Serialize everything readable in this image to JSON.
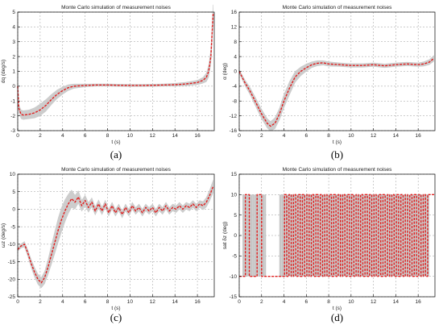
{
  "chart_data": [
    {
      "type": "line",
      "title": "Monte Carlo simulation of measurement noises",
      "xlabel": "t (s)",
      "ylabel": "dq (deg/s)",
      "caption": "(a)",
      "xlim": [
        0,
        17.5
      ],
      "ylim": [
        -3,
        5
      ],
      "xticks": [
        0,
        2,
        4,
        6,
        8,
        10,
        12,
        14,
        16
      ],
      "yticks": [
        -3,
        -2,
        -1,
        0,
        1,
        2,
        3,
        4,
        5
      ],
      "grid": true,
      "line_color": "#e11d1d",
      "band_color": "#c8c8c8",
      "x": [
        0,
        0.1,
        0.3,
        0.5,
        1,
        1.5,
        2,
        2.5,
        3,
        3.5,
        4,
        4.5,
        5,
        6,
        7,
        8,
        9,
        10,
        11,
        12,
        13,
        14,
        15,
        16,
        16.5,
        16.8,
        17,
        17.2,
        17.4
      ],
      "values": [
        0,
        -1.5,
        -1.9,
        -1.95,
        -1.9,
        -1.8,
        -1.6,
        -1.3,
        -0.9,
        -0.55,
        -0.3,
        -0.1,
        0.0,
        0.05,
        0.08,
        0.08,
        0.06,
        0.05,
        0.05,
        0.06,
        0.08,
        0.1,
        0.15,
        0.25,
        0.4,
        0.6,
        1.0,
        2.0,
        4.9
      ],
      "band": [
        0.2,
        0.25,
        0.3,
        0.3,
        0.3,
        0.35,
        0.4,
        0.4,
        0.35,
        0.3,
        0.25,
        0.2,
        0.15,
        0.1,
        0.08,
        0.08,
        0.08,
        0.08,
        0.08,
        0.08,
        0.08,
        0.1,
        0.12,
        0.15,
        0.2,
        0.3,
        0.4,
        0.5,
        0.6
      ]
    },
    {
      "type": "line",
      "title": "Monte Carlo simulation of measurement noises",
      "xlabel": "t (s)",
      "ylabel": "α (deg)",
      "caption": "(b)",
      "xlim": [
        0,
        17.5
      ],
      "ylim": [
        -16,
        16
      ],
      "xticks": [
        0,
        2,
        4,
        6,
        8,
        10,
        12,
        14,
        16
      ],
      "yticks": [
        -16,
        -12,
        -8,
        -4,
        0,
        4,
        8,
        12,
        16
      ],
      "grid": true,
      "line_color": "#e11d1d",
      "band_color": "#c8c8c8",
      "x": [
        0,
        0.5,
        1,
        1.5,
        2,
        2.5,
        2.8,
        3.2,
        3.6,
        4,
        4.5,
        5,
        5.5,
        6,
        6.5,
        7,
        7.5,
        8,
        9,
        10,
        11,
        12,
        13,
        14,
        15,
        16,
        16.5,
        17,
        17.4
      ],
      "values": [
        0,
        -3,
        -5.5,
        -8.5,
        -11.5,
        -14,
        -14.8,
        -14,
        -11.5,
        -8,
        -4.5,
        -1.5,
        0,
        1,
        1.8,
        2.2,
        2.3,
        2.0,
        1.8,
        1.6,
        1.6,
        1.8,
        1.5,
        1.8,
        2.0,
        1.8,
        2.0,
        2.5,
        3.5
      ],
      "band": [
        0.5,
        0.8,
        1.0,
        1.2,
        1.3,
        1.3,
        1.3,
        1.5,
        1.6,
        1.8,
        1.8,
        1.5,
        1.2,
        1.0,
        0.8,
        0.7,
        0.6,
        0.6,
        0.5,
        0.5,
        0.5,
        0.5,
        0.5,
        0.5,
        0.5,
        0.5,
        0.6,
        0.7,
        0.8
      ]
    },
    {
      "type": "line",
      "title": "Monte Carlo simulation of measurement noises",
      "xlabel": "t (s)",
      "ylabel": "ωz (deg/s)",
      "caption": "(c)",
      "xlim": [
        0,
        17.5
      ],
      "ylim": [
        -25,
        10
      ],
      "xticks": [
        0,
        2,
        4,
        6,
        8,
        10,
        12,
        14,
        16
      ],
      "yticks": [
        -25,
        -20,
        -15,
        -10,
        -5,
        0,
        5,
        10
      ],
      "grid": true,
      "line_color": "#e11d1d",
      "band_color": "#c8c8c8",
      "x": [
        0,
        0.3,
        0.6,
        0.9,
        1.2,
        1.5,
        1.8,
        2.1,
        2.4,
        2.7,
        3.0,
        3.3,
        3.6,
        3.9,
        4.2,
        4.5,
        4.8,
        5.1,
        5.4,
        5.7,
        6.0,
        6.3,
        6.6,
        6.9,
        7.2,
        7.5,
        7.8,
        8.1,
        8.4,
        8.7,
        9.0,
        9.3,
        9.6,
        9.9,
        10.2,
        10.5,
        10.8,
        11.1,
        11.4,
        11.7,
        12.0,
        12.3,
        12.6,
        12.9,
        13.2,
        13.5,
        13.8,
        14.1,
        14.4,
        14.7,
        15.0,
        15.3,
        15.6,
        15.9,
        16.2,
        16.5,
        16.8,
        17.1,
        17.4
      ],
      "values": [
        -11.5,
        -10.5,
        -10.0,
        -12.5,
        -15.5,
        -18.0,
        -20.0,
        -21.0,
        -19.5,
        -16.5,
        -13.0,
        -9.5,
        -6.0,
        -3.0,
        -0.5,
        1.5,
        3.0,
        2.0,
        3.5,
        1.0,
        2.5,
        0.5,
        2.0,
        -0.5,
        1.5,
        -0.5,
        1.5,
        -1.0,
        1.0,
        -1.0,
        0.5,
        -1.5,
        0.5,
        -1.0,
        1.0,
        -0.5,
        0.5,
        -1.0,
        0.5,
        -0.5,
        0.5,
        -1.0,
        0.5,
        -0.5,
        1.0,
        -0.5,
        0.5,
        0.0,
        1.0,
        0.0,
        1.0,
        0.5,
        1.5,
        0.5,
        1.5,
        1.0,
        2.0,
        4.0,
        6.5
      ],
      "band": [
        0.5,
        0.6,
        0.8,
        1.0,
        1.2,
        1.4,
        1.5,
        1.5,
        1.8,
        2.2,
        2.8,
        3.2,
        3.5,
        3.5,
        3.2,
        2.8,
        2.5,
        2.0,
        1.8,
        1.6,
        1.5,
        1.4,
        1.3,
        1.2,
        1.2,
        1.1,
        1.1,
        1.0,
        1.0,
        1.0,
        1.0,
        1.0,
        1.0,
        1.0,
        1.0,
        1.0,
        1.0,
        1.0,
        1.0,
        1.0,
        1.0,
        1.0,
        1.0,
        1.0,
        1.0,
        1.0,
        1.0,
        1.0,
        1.0,
        1.0,
        1.0,
        1.0,
        1.0,
        1.0,
        1.0,
        1.2,
        1.4,
        1.6,
        1.8
      ]
    },
    {
      "type": "line",
      "title": "Monte Carlo simulation of measurement noises",
      "xlabel": "t (s)",
      "ylabel": "sat δz (deg)",
      "caption": "(d)",
      "xlim": [
        0,
        17.5
      ],
      "ylim": [
        -15,
        15
      ],
      "xticks": [
        0,
        2,
        4,
        6,
        8,
        10,
        12,
        14,
        16
      ],
      "yticks": [
        -15,
        -10,
        -5,
        0,
        5,
        10,
        15
      ],
      "grid": true,
      "line_color": "#e11d1d",
      "band_color": "#c8c8c8",
      "x": [
        0,
        0.55,
        0.55,
        0.9,
        0.9,
        1.6,
        1.6,
        2.0,
        2.0,
        4.05,
        4.05,
        4.25,
        4.25,
        4.45,
        4.45,
        4.65,
        4.65,
        4.85,
        4.85,
        5.05,
        5.05,
        5.25,
        5.25,
        5.45,
        5.45,
        5.65,
        5.65,
        5.85,
        5.85,
        6.05,
        6.05,
        6.25,
        6.25,
        6.45,
        6.45,
        6.65,
        6.65,
        6.85,
        6.85,
        7.05,
        7.05,
        7.25,
        7.25,
        7.45,
        7.45,
        7.65,
        7.65,
        7.85,
        7.85,
        8.05,
        8.05,
        8.25,
        8.25,
        8.45,
        8.45,
        8.65,
        8.65,
        8.85,
        8.85,
        9.05,
        9.05,
        9.25,
        9.25,
        9.45,
        9.45,
        9.65,
        9.65,
        9.85,
        9.85,
        10.05,
        10.05,
        10.25,
        10.25,
        10.45,
        10.45,
        10.65,
        10.65,
        10.85,
        10.85,
        11.05,
        11.05,
        11.25,
        11.25,
        11.45,
        11.45,
        11.65,
        11.65,
        11.85,
        11.85,
        12.05,
        12.05,
        12.25,
        12.25,
        12.45,
        12.45,
        12.65,
        12.65,
        12.85,
        12.85,
        13.05,
        13.05,
        13.25,
        13.25,
        13.45,
        13.45,
        13.65,
        13.65,
        13.85,
        13.85,
        14.05,
        14.05,
        14.25,
        14.25,
        14.45,
        14.45,
        14.65,
        14.65,
        14.85,
        14.85,
        15.05,
        15.05,
        15.25,
        15.25,
        15.45,
        15.45,
        15.65,
        15.65,
        15.85,
        15.85,
        16.05,
        16.05,
        16.25,
        16.25,
        16.45,
        16.45,
        16.65,
        16.65,
        16.85,
        16.85,
        17.5
      ],
      "values": [
        -10,
        -10,
        10,
        10,
        -10,
        -10,
        10,
        10,
        -10,
        -10,
        10,
        10,
        -10,
        -10,
        10,
        10,
        -10,
        -10,
        10,
        10,
        -10,
        -10,
        10,
        10,
        -10,
        -10,
        10,
        10,
        -10,
        -10,
        10,
        10,
        -10,
        -10,
        10,
        10,
        -10,
        -10,
        10,
        10,
        -10,
        -10,
        10,
        10,
        -10,
        -10,
        10,
        10,
        -10,
        -10,
        10,
        10,
        -10,
        -10,
        10,
        10,
        -10,
        -10,
        10,
        10,
        -10,
        -10,
        10,
        10,
        -10,
        -10,
        10,
        10,
        -10,
        -10,
        10,
        10,
        -10,
        -10,
        10,
        10,
        -10,
        -10,
        10,
        10,
        -10,
        -10,
        10,
        10,
        -10,
        -10,
        10,
        10,
        -10,
        -10,
        10,
        10,
        -10,
        -10,
        10,
        10,
        -10,
        -10,
        10,
        10,
        -10,
        -10,
        10,
        10,
        -10,
        -10,
        10,
        10,
        -10,
        -10,
        10,
        10,
        -10,
        -10,
        10,
        10,
        -10,
        -10,
        10,
        10,
        -10,
        -10,
        10,
        10,
        -10,
        -10,
        10,
        10,
        -10,
        -10,
        10,
        10,
        -10,
        -10,
        10,
        10,
        -10,
        -10,
        10,
        10
      ],
      "band_regions": [
        [
          0.3,
          2.4
        ],
        [
          3.6,
          17.0
        ]
      ],
      "band_range": [
        -10,
        10
      ]
    }
  ]
}
